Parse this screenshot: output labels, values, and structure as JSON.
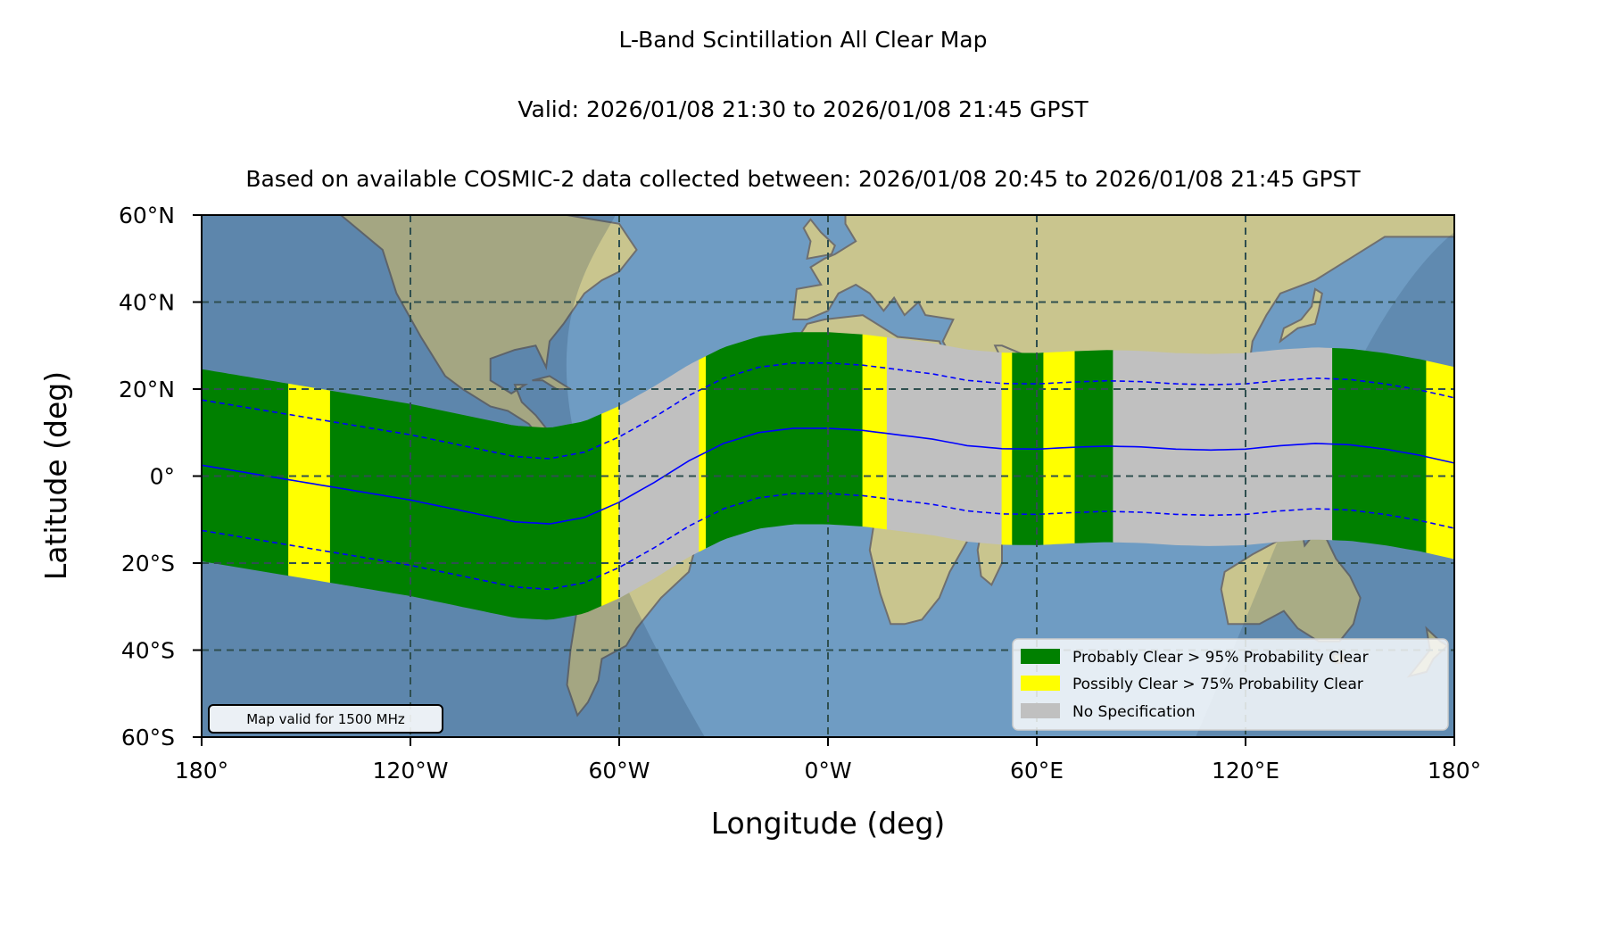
{
  "chart_data": {
    "type": "map",
    "title": "L-Band Scintillation All Clear Map",
    "subtitle": "Valid: 2026/01/08 21:30 to 2026/01/08 21:45 GPST",
    "subtitle2": "Based on available COSMIC-2 data collected between: 2026/01/08 20:45 to 2026/01/08 21:45 GPST",
    "xlabel": "Longitude (deg)",
    "ylabel": "Latitude (deg)",
    "xlim": [
      -180,
      180
    ],
    "ylim": [
      -60,
      60
    ],
    "xticks": [
      -180,
      -120,
      -60,
      0,
      60,
      120,
      180
    ],
    "xtick_labels": [
      "180°",
      "120°W",
      "60°W",
      "0°W",
      "60°E",
      "120°E",
      "180°"
    ],
    "yticks": [
      60,
      40,
      20,
      0,
      -20,
      -40,
      -60
    ],
    "ytick_labels": [
      "60°N",
      "40°N",
      "20°N",
      "0°",
      "20°S",
      "40°S",
      "60°S"
    ],
    "grid": true,
    "note": "Map valid for 1500 MHz",
    "legend_position": "lower-right",
    "legend": [
      {
        "label": "Probably Clear > 95% Probability Clear",
        "color": "#008000"
      },
      {
        "label": "Possibly Clear > 75% Probability Clear",
        "color": "#ffff00"
      },
      {
        "label": "No Specification",
        "color": "#c0c0c0"
      }
    ],
    "colors": {
      "clear": "#008000",
      "possibly": "#ffff00",
      "none": "#c0c0c0",
      "equator_line": "#0000ff",
      "ocean": "#6f9cc3",
      "land": "#c9c58e"
    },
    "magnetic_equator": {
      "lon": [
        -180,
        -165,
        -150,
        -135,
        -120,
        -105,
        -90,
        -80,
        -70,
        -60,
        -50,
        -40,
        -30,
        -20,
        -10,
        0,
        10,
        20,
        30,
        40,
        50,
        60,
        70,
        80,
        90,
        100,
        110,
        120,
        130,
        140,
        150,
        160,
        170,
        180
      ],
      "lat": [
        2.5,
        0.5,
        -1.5,
        -3.5,
        -5.5,
        -8,
        -10.5,
        -11,
        -9.5,
        -6,
        -1.5,
        3.5,
        7.5,
        10,
        11,
        11,
        10.5,
        9.5,
        8.5,
        7,
        6.3,
        6.2,
        6.6,
        6.9,
        6.7,
        6.2,
        6,
        6.2,
        7,
        7.5,
        7.2,
        6.2,
        4.8,
        3
      ]
    },
    "band_segments": [
      {
        "lon": [
          -180,
          -155
        ],
        "status": "probably_clear"
      },
      {
        "lon": [
          -155,
          -143
        ],
        "status": "possibly_clear"
      },
      {
        "lon": [
          -143,
          -65
        ],
        "status": "probably_clear"
      },
      {
        "lon": [
          -65,
          -60
        ],
        "status": "possibly_clear"
      },
      {
        "lon": [
          -60,
          -37
        ],
        "status": "no_specification"
      },
      {
        "lon": [
          -37,
          -35
        ],
        "status": "possibly_clear"
      },
      {
        "lon": [
          -35,
          10
        ],
        "status": "probably_clear"
      },
      {
        "lon": [
          10,
          17
        ],
        "status": "possibly_clear"
      },
      {
        "lon": [
          17,
          50
        ],
        "status": "no_specification"
      },
      {
        "lon": [
          50,
          53
        ],
        "status": "possibly_clear"
      },
      {
        "lon": [
          53,
          62
        ],
        "status": "probably_clear"
      },
      {
        "lon": [
          62,
          71
        ],
        "status": "possibly_clear"
      },
      {
        "lon": [
          71,
          82
        ],
        "status": "probably_clear"
      },
      {
        "lon": [
          82,
          145
        ],
        "status": "no_specification"
      },
      {
        "lon": [
          145,
          172
        ],
        "status": "probably_clear"
      },
      {
        "lon": [
          172,
          180
        ],
        "status": "possibly_clear"
      }
    ]
  }
}
